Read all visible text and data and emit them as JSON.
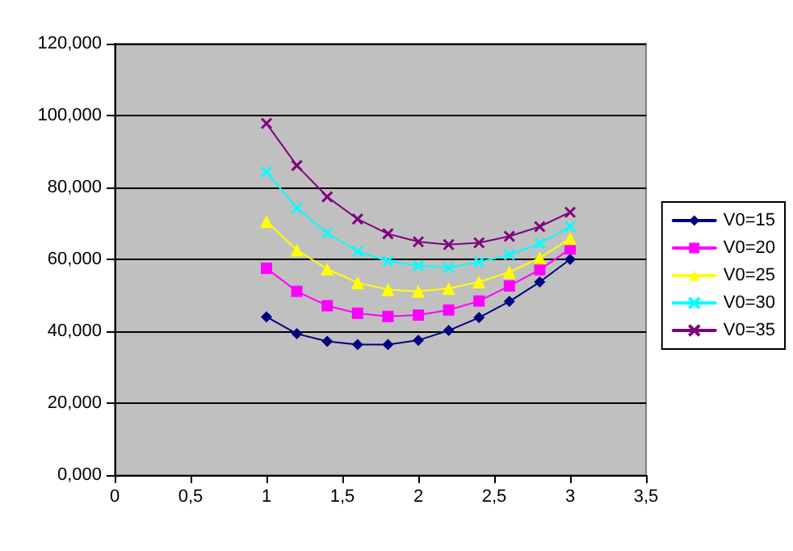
{
  "chart_data": {
    "type": "line",
    "x": [
      1,
      1.2,
      1.4,
      1.6,
      1.8,
      2,
      2.2,
      2.4,
      2.6,
      2.8,
      3
    ],
    "series": [
      {
        "name": "V0=15",
        "color": "#000080",
        "marker": "diamond",
        "values": [
          44,
          39.3,
          37.2,
          36.3,
          36.3,
          37.5,
          40.2,
          43.8,
          48.3,
          53.7,
          60
        ]
      },
      {
        "name": "V0=20",
        "color": "#ff00ff",
        "marker": "square",
        "values": [
          57.5,
          51.1,
          47.1,
          45,
          44.1,
          44.5,
          45.9,
          48.4,
          52.6,
          57.1,
          62.9
        ]
      },
      {
        "name": "V0=25",
        "color": "#ffff00",
        "marker": "triangle",
        "values": [
          70.5,
          62.6,
          57.3,
          53.5,
          51.6,
          51.1,
          51.9,
          53.7,
          56.4,
          60.4,
          65.8
        ]
      },
      {
        "name": "V0=30",
        "color": "#00ffff",
        "marker": "cross",
        "values": [
          84.3,
          74.3,
          67.3,
          62.2,
          59.5,
          58.2,
          57.7,
          59.2,
          61.3,
          64.4,
          69.1
        ]
      },
      {
        "name": "V0=35",
        "color": "#800080",
        "marker": "cross",
        "values": [
          97.8,
          86.1,
          77.4,
          71.2,
          67.1,
          64.9,
          64.1,
          64.6,
          66.4,
          69.1,
          73.1
        ]
      }
    ],
    "xlim": [
      0,
      3.5
    ],
    "xticks": [
      0,
      {
        "value": 0.5,
        "label": "0,5"
      },
      1,
      {
        "value": 1.5,
        "label": "1,5"
      },
      2,
      {
        "value": 2.5,
        "label": "2,5"
      },
      3,
      {
        "value": 3.5,
        "label": "3,5"
      }
    ],
    "ylim": [
      0,
      120
    ],
    "yticks": [
      {
        "value": 0,
        "label": "0,000"
      },
      {
        "value": 20,
        "label": "20,000"
      },
      {
        "value": 40,
        "label": "40,000"
      },
      {
        "value": 60,
        "label": "60,000"
      },
      {
        "value": 80,
        "label": "80,000"
      },
      {
        "value": 100,
        "label": "100,000"
      },
      {
        "value": 120,
        "label": "120,000"
      }
    ],
    "grid": "y",
    "legend": "right",
    "line_style": "solid"
  }
}
